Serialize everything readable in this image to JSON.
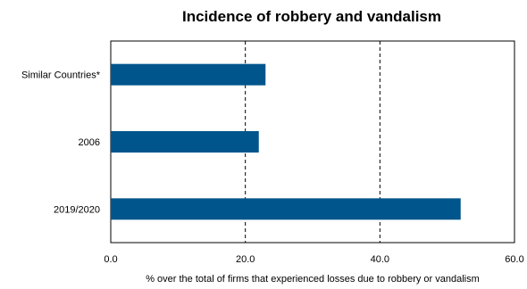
{
  "chart_data": {
    "type": "bar",
    "orientation": "horizontal",
    "title": "Incidence of robbery and vandalism",
    "xlabel": "% over the total of firms that experienced losses due to robbery  or vandalism",
    "ylabel": "",
    "categories": [
      "Similar Countries*",
      "2006",
      "2019/2020"
    ],
    "values": [
      23.0,
      22.0,
      52.0
    ],
    "xlim": [
      0,
      60
    ],
    "xticks": [
      0,
      20,
      40,
      60
    ],
    "xtick_labels": [
      "0.0",
      "20.0",
      "40.0",
      "60.0"
    ],
    "grid": "vertical dashed at 20 and 40",
    "legend": "none",
    "bar_color": "#00558C"
  }
}
